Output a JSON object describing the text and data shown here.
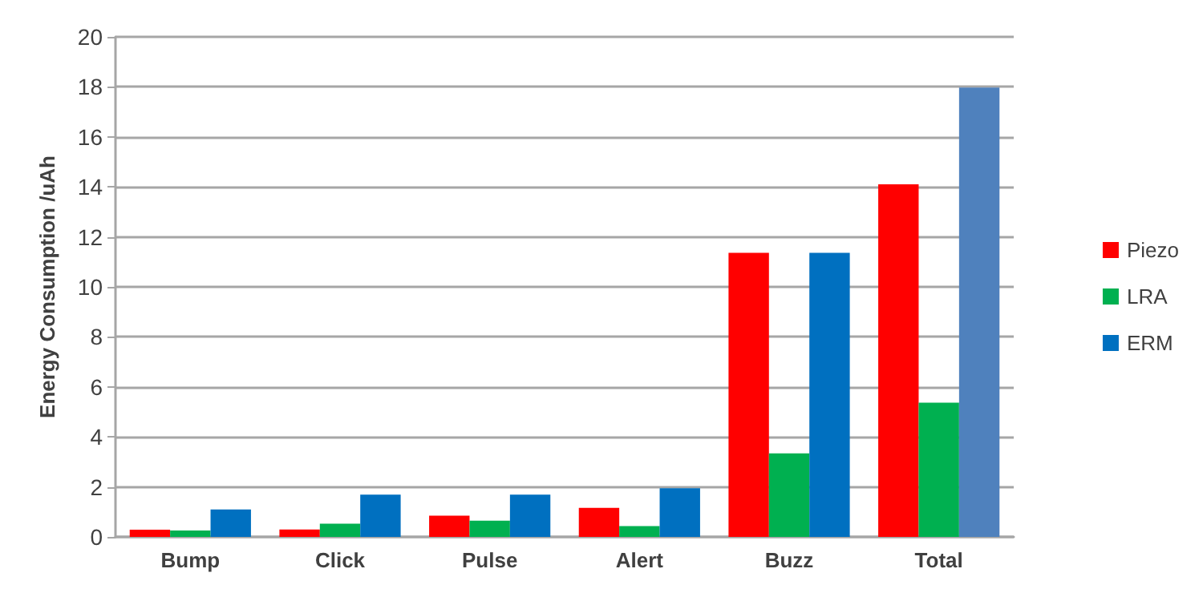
{
  "chart_data": {
    "type": "bar",
    "ylabel": "Energy Consumption /uAh",
    "categories": [
      "Bump",
      "Click",
      "Pulse",
      "Alert",
      "Buzz",
      "Total"
    ],
    "series": [
      {
        "name": "Piezo",
        "color": "#ff0000",
        "values": [
          0.29,
          0.3,
          0.85,
          1.16,
          11.36,
          14.1
        ]
      },
      {
        "name": "LRA",
        "color": "#00b050",
        "values": [
          0.26,
          0.53,
          0.65,
          0.43,
          3.34,
          5.37
        ]
      },
      {
        "name": "ERM",
        "color": "#0070c0",
        "colors": [
          "#0070c0",
          "#0070c0",
          "#0070c0",
          "#0070c0",
          "#0070c0",
          "#4f81bd"
        ],
        "values": [
          1.1,
          1.69,
          1.69,
          1.95,
          11.36,
          17.97
        ]
      }
    ],
    "ylim": [
      0,
      20
    ],
    "yticks": [
      0,
      2,
      4,
      6,
      8,
      10,
      12,
      14,
      16,
      18,
      20
    ],
    "grid": "y",
    "legend": "right"
  }
}
